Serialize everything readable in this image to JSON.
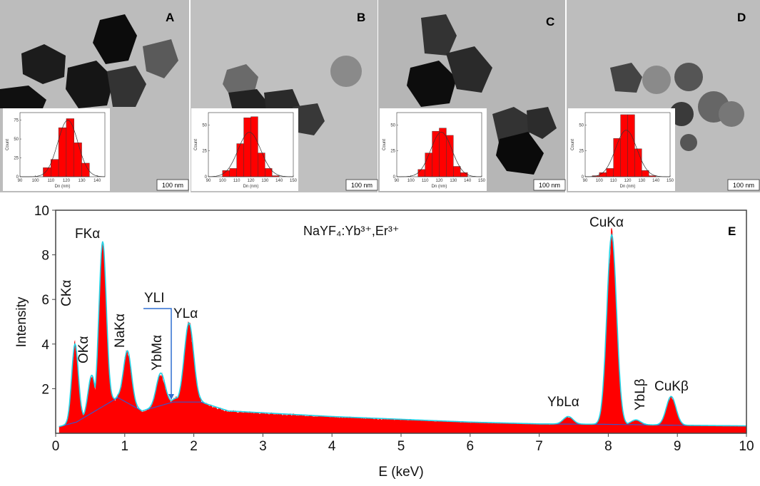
{
  "panels": [
    {
      "letter": "A",
      "scale_bar": "100 nm"
    },
    {
      "letter": "B",
      "scale_bar": "100 nm"
    },
    {
      "letter": "C",
      "scale_bar": "100 nm"
    },
    {
      "letter": "D",
      "scale_bar": "100 nm"
    }
  ],
  "colors": {
    "bar": "#ff0000",
    "tem_background": "#b8b8b8",
    "particle": "#1a1a1a",
    "spectrum_fill": "#ff0000",
    "spectrum_line": "#22d3e6",
    "background_line": "#3a55c8",
    "annotation": "#2f6fd0"
  },
  "chart_data": [
    {
      "type": "bar",
      "panel": "A",
      "xlabel": "Dn (nm)",
      "ylabel": "Count",
      "xlim": [
        90,
        145
      ],
      "ylim": [
        0,
        85
      ],
      "xticks": [
        "90",
        "100",
        "110",
        "120",
        "130",
        "140"
      ],
      "yticks": [
        "0",
        "25",
        "50",
        "75"
      ],
      "bin_width": 5,
      "bins": [
        105,
        110,
        115,
        120,
        125,
        130
      ],
      "values": [
        12,
        23,
        65,
        77,
        45,
        18
      ],
      "fit": {
        "mean": 121,
        "peak": 75,
        "sigma": 6.5
      }
    },
    {
      "type": "bar",
      "panel": "B",
      "xlabel": "Dn (nm)",
      "ylabel": "Count",
      "xlim": [
        90,
        150
      ],
      "ylim": [
        0,
        62
      ],
      "xticks": [
        "90",
        "100",
        "110",
        "120",
        "130",
        "140",
        "150"
      ],
      "yticks": [
        "0",
        "25",
        "50"
      ],
      "bin_width": 5,
      "bins": [
        100,
        105,
        110,
        115,
        120,
        125,
        130,
        135
      ],
      "values": [
        6,
        8,
        32,
        57,
        58,
        23,
        8,
        1
      ],
      "fit": {
        "mean": 119,
        "peak": 43,
        "sigma": 8
      }
    },
    {
      "type": "bar",
      "panel": "C",
      "xlabel": "Dn (nm)",
      "ylabel": "Count",
      "xlim": [
        90,
        150
      ],
      "ylim": [
        0,
        62
      ],
      "xticks": [
        "90",
        "100",
        "110",
        "120",
        "130",
        "140",
        "150"
      ],
      "yticks": [
        "0",
        "25",
        "50"
      ],
      "bin_width": 5,
      "bins": [
        105,
        110,
        115,
        120,
        125,
        130,
        135
      ],
      "values": [
        7,
        23,
        44,
        47,
        40,
        10,
        4
      ],
      "fit": {
        "mean": 121.5,
        "peak": 43,
        "sigma": 7.5
      }
    },
    {
      "type": "bar",
      "panel": "D",
      "xlabel": "Dn (nm)",
      "ylabel": "Count",
      "xlim": [
        90,
        150
      ],
      "ylim": [
        0,
        62
      ],
      "xticks": [
        "90",
        "100",
        "110",
        "120",
        "130",
        "140",
        "150"
      ],
      "yticks": [
        "0",
        "25",
        "50"
      ],
      "bin_width": 5,
      "bins": [
        95,
        100,
        105,
        110,
        115,
        120,
        125,
        130,
        135
      ],
      "values": [
        1,
        4,
        8,
        37,
        60,
        60,
        27,
        6,
        1
      ],
      "fit": {
        "mean": 119,
        "peak": 45,
        "sigma": 7.5
      }
    },
    {
      "type": "area",
      "panel": "E",
      "title": "NaYF₄:Yb³⁺,Er³⁺",
      "xlabel": "E (keV)",
      "ylabel": "Intensity",
      "xlim": [
        0,
        10
      ],
      "ylim": [
        0,
        10
      ],
      "grid": false,
      "xticks": [
        "0",
        "1",
        "2",
        "3",
        "4",
        "5",
        "6",
        "7",
        "8",
        "9",
        "10"
      ],
      "yticks": [
        "2",
        "4",
        "6",
        "8",
        "10"
      ],
      "peaks": [
        {
          "label": "CKα",
          "energy": 0.28,
          "intensity": 4.0
        },
        {
          "label": "OKα",
          "energy": 0.52,
          "intensity": 2.6
        },
        {
          "label": "FKα",
          "energy": 0.68,
          "intensity": 8.6
        },
        {
          "label": "NaKα",
          "energy": 1.04,
          "intensity": 3.7
        },
        {
          "label": "YbMα",
          "energy": 1.52,
          "intensity": 2.7
        },
        {
          "label": "YLI",
          "energy": 1.77,
          "intensity": 1.6
        },
        {
          "label": "YLα",
          "energy": 1.93,
          "intensity": 4.95
        },
        {
          "label": "YbLα",
          "energy": 7.42,
          "intensity": 0.75
        },
        {
          "label": "CuKα",
          "energy": 8.05,
          "intensity": 8.9
        },
        {
          "label": "YbLβ",
          "energy": 8.4,
          "intensity": 0.6
        },
        {
          "label": "CuKβ",
          "energy": 8.91,
          "intensity": 1.65
        }
      ],
      "background": {
        "energy": [
          0.05,
          0.3,
          0.9,
          1.25,
          1.7,
          2.1,
          2.5,
          4,
          6,
          7,
          8,
          9,
          10
        ],
        "intensity": [
          0.3,
          0.5,
          1.6,
          1.0,
          1.4,
          1.4,
          1.0,
          0.75,
          0.5,
          0.42,
          0.4,
          0.36,
          0.33
        ]
      }
    }
  ]
}
